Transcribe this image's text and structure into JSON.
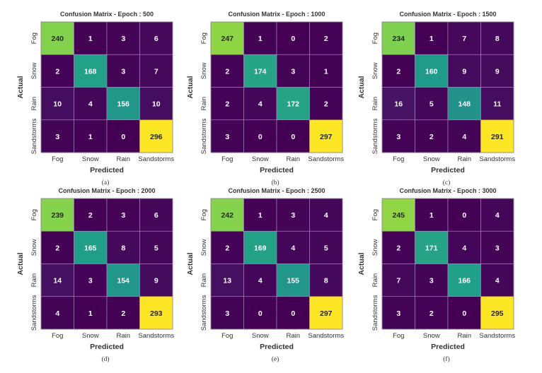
{
  "chart_data": [
    {
      "type": "heatmap",
      "title": "Confusion Matrix - Epoch : 500",
      "caption": "(a)",
      "xlabel": "Predicted",
      "ylabel": "Actual",
      "x_categories": [
        "Fog",
        "Snow",
        "Rain",
        "Sandstorms"
      ],
      "y_categories": [
        "Fog",
        "Snow",
        "Rain",
        "Sandstorms"
      ],
      "values": [
        [
          240,
          1,
          3,
          6
        ],
        [
          2,
          168,
          3,
          7
        ],
        [
          10,
          4,
          156,
          10
        ],
        [
          3,
          1,
          0,
          296
        ]
      ],
      "colormap": "viridis"
    },
    {
      "type": "heatmap",
      "title": "Confusion Matrix - Epoch : 1000",
      "caption": "(b)",
      "xlabel": "Predicted",
      "ylabel": "Actual",
      "x_categories": [
        "Fog",
        "Snow",
        "Rain",
        "Sandstorms"
      ],
      "y_categories": [
        "Fog",
        "Snow",
        "Rain",
        "Sandstorms"
      ],
      "values": [
        [
          247,
          1,
          0,
          2
        ],
        [
          2,
          174,
          3,
          1
        ],
        [
          2,
          4,
          172,
          2
        ],
        [
          3,
          0,
          0,
          297
        ]
      ],
      "colormap": "viridis"
    },
    {
      "type": "heatmap",
      "title": "Confusion Matrix - Epoch : 1500",
      "caption": "(c)",
      "xlabel": "Predicted",
      "ylabel": "Actual",
      "x_categories": [
        "Fog",
        "Snow",
        "Rain",
        "Sandstorms"
      ],
      "y_categories": [
        "Fog",
        "Snow",
        "Rain",
        "Sandstorms"
      ],
      "values": [
        [
          234,
          1,
          7,
          8
        ],
        [
          2,
          160,
          9,
          9
        ],
        [
          16,
          5,
          148,
          11
        ],
        [
          3,
          2,
          4,
          291
        ]
      ],
      "colormap": "viridis"
    },
    {
      "type": "heatmap",
      "title": "Confusion Matrix - Epoch : 2000",
      "caption": "(d)",
      "xlabel": "Predicted",
      "ylabel": "Actual",
      "x_categories": [
        "Fog",
        "Snow",
        "Rain",
        "Sandstorms"
      ],
      "y_categories": [
        "Fog",
        "Snow",
        "Rain",
        "Sandstorms"
      ],
      "values": [
        [
          239,
          2,
          3,
          6
        ],
        [
          2,
          165,
          8,
          5
        ],
        [
          14,
          3,
          154,
          9
        ],
        [
          4,
          1,
          2,
          293
        ]
      ],
      "colormap": "viridis"
    },
    {
      "type": "heatmap",
      "title": "Confusion Matrix - Epoch : 2500",
      "caption": "(e)",
      "xlabel": "Predicted",
      "ylabel": "Actual",
      "x_categories": [
        "Fog",
        "Snow",
        "Rain",
        "Sandstorms"
      ],
      "y_categories": [
        "Fog",
        "Snow",
        "Rain",
        "Sandstorms"
      ],
      "values": [
        [
          242,
          1,
          3,
          4
        ],
        [
          2,
          169,
          4,
          5
        ],
        [
          13,
          4,
          155,
          8
        ],
        [
          3,
          0,
          0,
          297
        ]
      ],
      "colormap": "viridis"
    },
    {
      "type": "heatmap",
      "title": "Confusion Matrix - Epoch : 3000",
      "caption": "(f)",
      "xlabel": "Predicted",
      "ylabel": "Actual",
      "x_categories": [
        "Fog",
        "Snow",
        "Rain",
        "Sandstorms"
      ],
      "y_categories": [
        "Fog",
        "Snow",
        "Rain",
        "Sandstorms"
      ],
      "values": [
        [
          245,
          1,
          0,
          4
        ],
        [
          2,
          171,
          4,
          3
        ],
        [
          7,
          3,
          166,
          4
        ],
        [
          3,
          2,
          0,
          295
        ]
      ],
      "colormap": "viridis"
    }
  ]
}
